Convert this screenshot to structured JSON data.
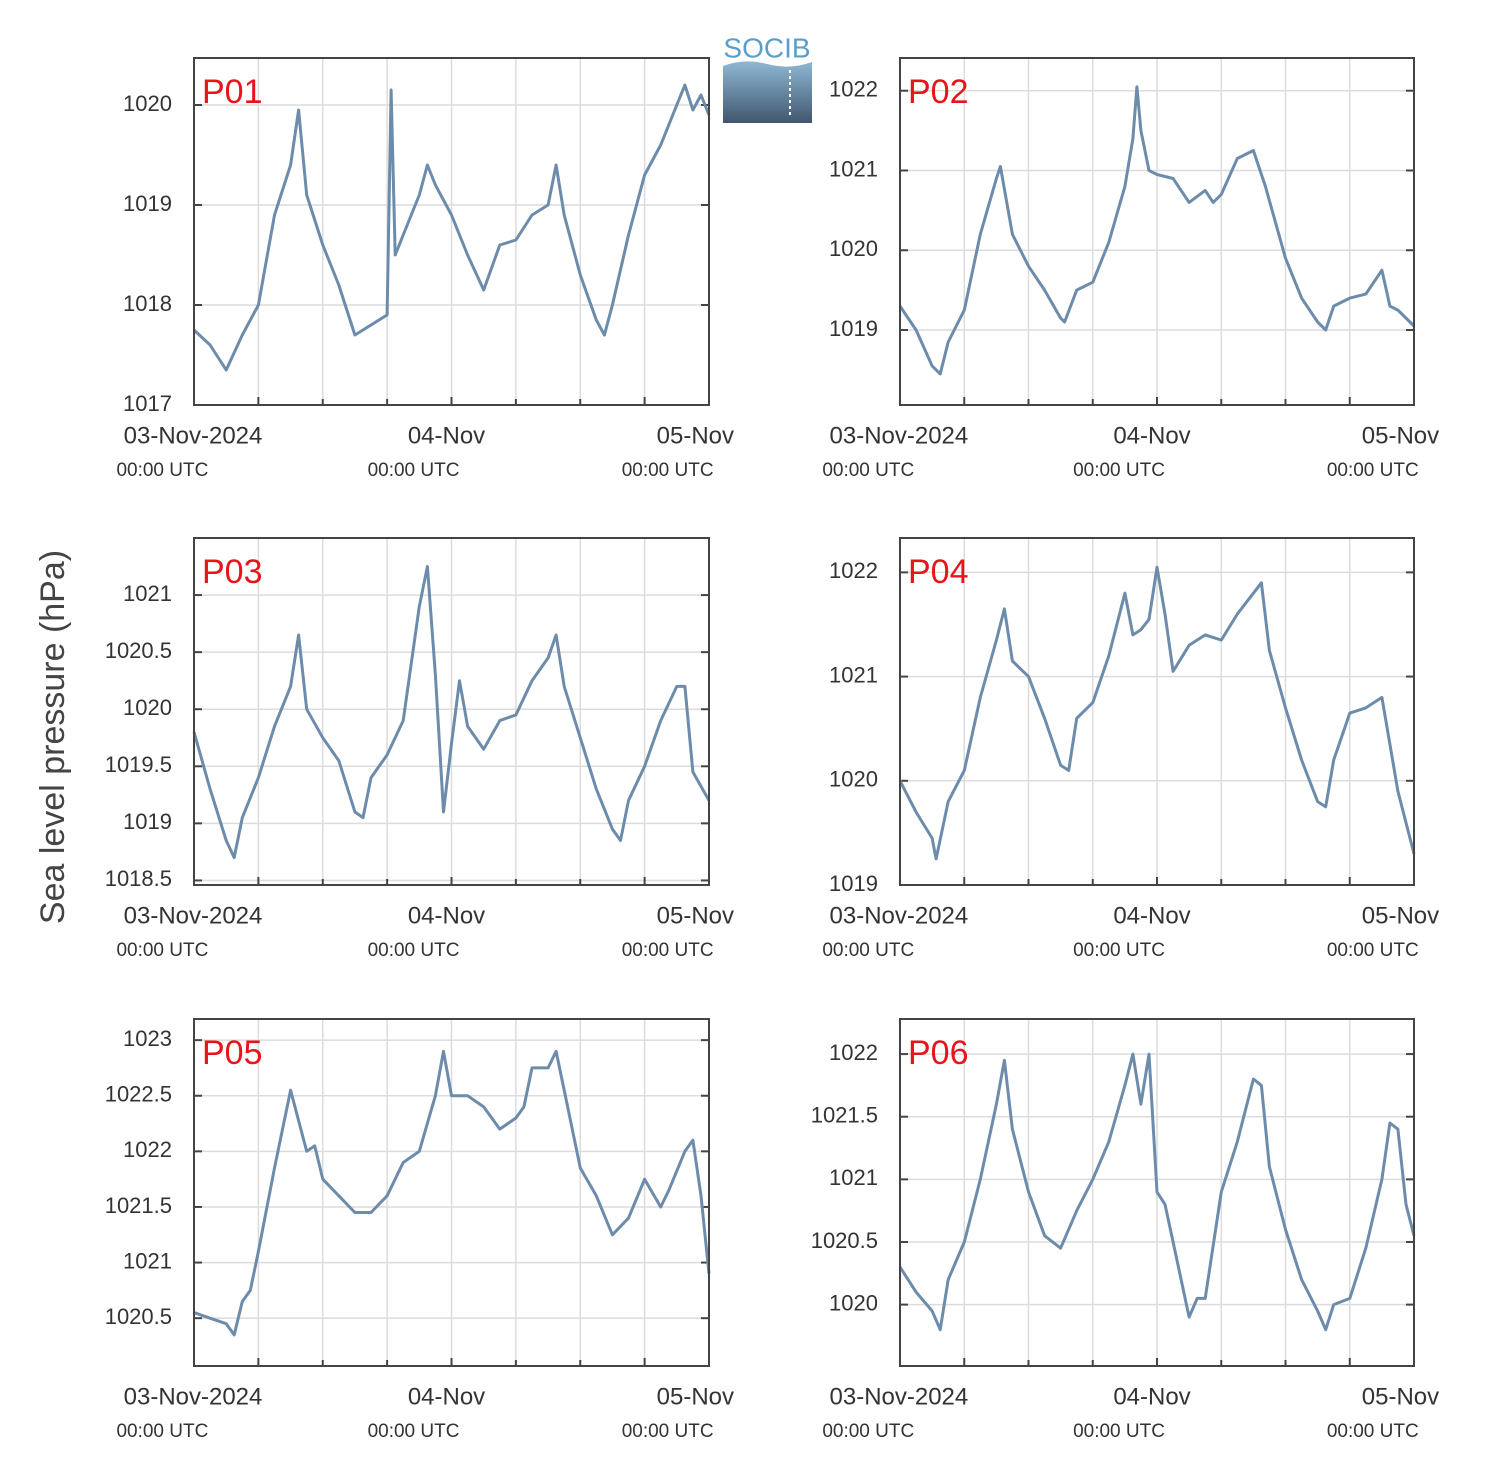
{
  "ylabel": "Sea level pressure (hPa)",
  "logo": "SOCIB",
  "chart_data": [
    {
      "type": "line",
      "title": "P01",
      "color": "#6d8cab",
      "grid": true,
      "x": [
        "2024-11-02 16:00",
        "2024-11-02 18:00",
        "2024-11-02 20:00",
        "2024-11-02 22:00",
        "2024-11-03 00:00",
        "2024-11-03 02:00",
        "2024-11-03 04:00",
        "2024-11-03 05:00",
        "2024-11-03 06:00",
        "2024-11-03 08:00",
        "2024-11-03 10:00",
        "2024-11-03 12:00",
        "2024-11-03 14:00",
        "2024-11-03 16:00",
        "2024-11-03 16:30",
        "2024-11-03 17:00",
        "2024-11-03 18:00",
        "2024-11-03 20:00",
        "2024-11-03 21:00",
        "2024-11-03 22:00",
        "2024-11-04 00:00",
        "2024-11-04 02:00",
        "2024-11-04 04:00",
        "2024-11-04 06:00",
        "2024-11-04 08:00",
        "2024-11-04 10:00",
        "2024-11-04 12:00",
        "2024-11-04 13:00",
        "2024-11-04 14:00",
        "2024-11-04 16:00",
        "2024-11-04 18:00",
        "2024-11-04 19:00",
        "2024-11-04 20:00",
        "2024-11-04 22:00",
        "2024-11-05 00:00",
        "2024-11-05 02:00",
        "2024-11-05 04:00",
        "2024-11-05 05:00",
        "2024-11-05 06:00",
        "2024-11-05 07:00",
        "2024-11-05 08:00"
      ],
      "values": [
        1017.75,
        1017.6,
        1017.35,
        1017.7,
        1018.0,
        1018.9,
        1019.4,
        1019.95,
        1019.1,
        1018.6,
        1018.2,
        1017.7,
        1017.8,
        1017.9,
        1020.15,
        1018.5,
        1018.7,
        1019.1,
        1019.4,
        1019.2,
        1018.9,
        1018.5,
        1018.15,
        1018.6,
        1018.65,
        1018.9,
        1019.0,
        1019.4,
        1018.9,
        1018.3,
        1017.85,
        1017.7,
        1018.0,
        1018.7,
        1019.3,
        1019.6,
        1020.0,
        1020.2,
        1019.95,
        1020.1,
        1019.9
      ],
      "xlim": [
        "2024-11-02 16:00",
        "2024-11-05 08:00"
      ],
      "xticks": [
        {
          "value": "2024-11-03 00:00",
          "label": "03-Nov-2024",
          "sublabel": "00:00 UTC"
        },
        {
          "value": "2024-11-04 00:00",
          "label": "04-Nov",
          "sublabel": "00:00 UTC"
        },
        {
          "value": "2024-11-05 00:00",
          "label": "05-Nov",
          "sublabel": "00:00 UTC"
        }
      ],
      "xgrid": [
        "2024-11-03 08:00",
        "2024-11-03 16:00",
        "2024-11-04 08:00",
        "2024-11-04 16:00"
      ],
      "ylim": [
        1017,
        1020.47
      ],
      "yticks": [
        1017,
        1018,
        1019,
        1020
      ]
    },
    {
      "type": "line",
      "title": "P02",
      "color": "#6d8cab",
      "grid": true,
      "x": [
        "2024-11-02 16:00",
        "2024-11-02 18:00",
        "2024-11-02 20:00",
        "2024-11-02 21:00",
        "2024-11-02 22:00",
        "2024-11-03 00:00",
        "2024-11-03 02:00",
        "2024-11-03 04:00",
        "2024-11-03 04:30",
        "2024-11-03 06:00",
        "2024-11-03 08:00",
        "2024-11-03 10:00",
        "2024-11-03 12:00",
        "2024-11-03 12:30",
        "2024-11-03 14:00",
        "2024-11-03 16:00",
        "2024-11-03 18:00",
        "2024-11-03 20:00",
        "2024-11-03 21:00",
        "2024-11-03 21:30",
        "2024-11-03 22:00",
        "2024-11-03 23:00",
        "2024-11-04 00:00",
        "2024-11-04 02:00",
        "2024-11-04 04:00",
        "2024-11-04 06:00",
        "2024-11-04 07:00",
        "2024-11-04 08:00",
        "2024-11-04 10:00",
        "2024-11-04 12:00",
        "2024-11-04 13:30",
        "2024-11-04 16:00",
        "2024-11-04 18:00",
        "2024-11-04 20:00",
        "2024-11-04 21:00",
        "2024-11-04 22:00",
        "2024-11-05 00:00",
        "2024-11-05 02:00",
        "2024-11-05 04:00",
        "2024-11-05 05:00",
        "2024-11-05 06:00",
        "2024-11-05 08:00"
      ],
      "values": [
        1019.3,
        1019.0,
        1018.55,
        1018.45,
        1018.85,
        1019.25,
        1020.2,
        1020.9,
        1021.05,
        1020.2,
        1019.8,
        1019.5,
        1019.15,
        1019.1,
        1019.5,
        1019.6,
        1020.1,
        1020.8,
        1021.4,
        1022.05,
        1021.5,
        1021.0,
        1020.95,
        1020.9,
        1020.6,
        1020.75,
        1020.6,
        1020.7,
        1021.15,
        1021.25,
        1020.8,
        1019.9,
        1019.4,
        1019.1,
        1019.0,
        1019.3,
        1019.4,
        1019.45,
        1019.75,
        1019.3,
        1019.25,
        1019.05
      ],
      "xlim": [
        "2024-11-02 16:00",
        "2024-11-05 08:00"
      ],
      "xticks": [
        {
          "value": "2024-11-03 00:00",
          "label": "03-Nov-2024",
          "sublabel": "00:00 UTC"
        },
        {
          "value": "2024-11-04 00:00",
          "label": "04-Nov",
          "sublabel": "00:00 UTC"
        },
        {
          "value": "2024-11-05 00:00",
          "label": "05-Nov",
          "sublabel": "00:00 UTC"
        }
      ],
      "xgrid": [
        "2024-11-03 08:00",
        "2024-11-03 16:00",
        "2024-11-04 08:00",
        "2024-11-04 16:00"
      ],
      "ylim": [
        1018.06,
        1022.41
      ],
      "yticks": [
        1019,
        1020,
        1021,
        1022
      ]
    },
    {
      "type": "line",
      "title": "P03",
      "color": "#6d8cab",
      "grid": true,
      "x": [
        "2024-11-02 16:00",
        "2024-11-02 18:00",
        "2024-11-02 20:00",
        "2024-11-02 21:00",
        "2024-11-02 22:00",
        "2024-11-03 00:00",
        "2024-11-03 02:00",
        "2024-11-03 04:00",
        "2024-11-03 05:00",
        "2024-11-03 06:00",
        "2024-11-03 08:00",
        "2024-11-03 10:00",
        "2024-11-03 12:00",
        "2024-11-03 13:00",
        "2024-11-03 14:00",
        "2024-11-03 16:00",
        "2024-11-03 18:00",
        "2024-11-03 20:00",
        "2024-11-03 21:00",
        "2024-11-03 22:00",
        "2024-11-03 23:00",
        "2024-11-04 00:00",
        "2024-11-04 01:00",
        "2024-11-04 02:00",
        "2024-11-04 04:00",
        "2024-11-04 06:00",
        "2024-11-04 08:00",
        "2024-11-04 10:00",
        "2024-11-04 12:00",
        "2024-11-04 13:00",
        "2024-11-04 14:00",
        "2024-11-04 16:00",
        "2024-11-04 18:00",
        "2024-11-04 20:00",
        "2024-11-04 21:00",
        "2024-11-04 22:00",
        "2024-11-05 00:00",
        "2024-11-05 02:00",
        "2024-11-05 04:00",
        "2024-11-05 05:00",
        "2024-11-05 06:00",
        "2024-11-05 08:00"
      ],
      "values": [
        1019.8,
        1019.3,
        1018.85,
        1018.7,
        1019.05,
        1019.4,
        1019.85,
        1020.2,
        1020.65,
        1020.0,
        1019.75,
        1019.55,
        1019.1,
        1019.05,
        1019.4,
        1019.6,
        1019.9,
        1020.9,
        1021.25,
        1020.3,
        1019.1,
        1019.7,
        1020.25,
        1019.85,
        1019.65,
        1019.9,
        1019.95,
        1020.25,
        1020.45,
        1020.65,
        1020.2,
        1019.75,
        1019.3,
        1018.95,
        1018.85,
        1019.2,
        1019.5,
        1019.9,
        1020.2,
        1020.2,
        1019.45,
        1019.2
      ],
      "xlim": [
        "2024-11-02 16:00",
        "2024-11-05 08:00"
      ],
      "xticks": [
        {
          "value": "2024-11-03 00:00",
          "label": "03-Nov-2024",
          "sublabel": "00:00 UTC"
        },
        {
          "value": "2024-11-04 00:00",
          "label": "04-Nov",
          "sublabel": "00:00 UTC"
        },
        {
          "value": "2024-11-05 00:00",
          "label": "05-Nov",
          "sublabel": "00:00 UTC"
        }
      ],
      "xgrid": [
        "2024-11-03 08:00",
        "2024-11-03 16:00",
        "2024-11-04 08:00",
        "2024-11-04 16:00"
      ],
      "ylim": [
        1018.46,
        1021.5
      ],
      "yticks": [
        1018.5,
        1019,
        1019.5,
        1020,
        1020.5,
        1021
      ]
    },
    {
      "type": "line",
      "title": "P04",
      "color": "#6d8cab",
      "grid": true,
      "x": [
        "2024-11-02 16:00",
        "2024-11-02 18:00",
        "2024-11-02 20:00",
        "2024-11-02 20:30",
        "2024-11-02 22:00",
        "2024-11-03 00:00",
        "2024-11-03 02:00",
        "2024-11-03 04:00",
        "2024-11-03 05:00",
        "2024-11-03 06:00",
        "2024-11-03 08:00",
        "2024-11-03 10:00",
        "2024-11-03 12:00",
        "2024-11-03 13:00",
        "2024-11-03 14:00",
        "2024-11-03 16:00",
        "2024-11-03 18:00",
        "2024-11-03 20:00",
        "2024-11-03 21:00",
        "2024-11-03 22:00",
        "2024-11-03 23:00",
        "2024-11-04 00:00",
        "2024-11-04 01:00",
        "2024-11-04 02:00",
        "2024-11-04 04:00",
        "2024-11-04 06:00",
        "2024-11-04 08:00",
        "2024-11-04 10:00",
        "2024-11-04 12:00",
        "2024-11-04 13:00",
        "2024-11-04 14:00",
        "2024-11-04 16:00",
        "2024-11-04 18:00",
        "2024-11-04 20:00",
        "2024-11-04 21:00",
        "2024-11-04 22:00",
        "2024-11-05 00:00",
        "2024-11-05 02:00",
        "2024-11-05 04:00",
        "2024-11-05 05:00",
        "2024-11-05 06:00",
        "2024-11-05 08:00"
      ],
      "values": [
        1020.0,
        1019.7,
        1019.45,
        1019.25,
        1019.8,
        1020.1,
        1020.8,
        1021.35,
        1021.65,
        1021.15,
        1021.0,
        1020.6,
        1020.15,
        1020.1,
        1020.6,
        1020.75,
        1021.2,
        1021.8,
        1021.4,
        1021.45,
        1021.55,
        1022.05,
        1021.6,
        1021.05,
        1021.3,
        1021.4,
        1021.35,
        1021.6,
        1021.8,
        1021.9,
        1021.25,
        1020.7,
        1020.2,
        1019.8,
        1019.75,
        1020.2,
        1020.65,
        1020.7,
        1020.8,
        1020.35,
        1019.9,
        1019.3
      ],
      "xlim": [
        "2024-11-02 16:00",
        "2024-11-05 08:00"
      ],
      "xticks": [
        {
          "value": "2024-11-03 00:00",
          "label": "03-Nov-2024",
          "sublabel": "00:00 UTC"
        },
        {
          "value": "2024-11-04 00:00",
          "label": "04-Nov",
          "sublabel": "00:00 UTC"
        },
        {
          "value": "2024-11-05 00:00",
          "label": "05-Nov",
          "sublabel": "00:00 UTC"
        }
      ],
      "xgrid": [
        "2024-11-03 08:00",
        "2024-11-03 16:00",
        "2024-11-04 08:00",
        "2024-11-04 16:00"
      ],
      "ylim": [
        1019,
        1022.33
      ],
      "yticks": [
        1019,
        1020,
        1021,
        1022
      ]
    },
    {
      "type": "line",
      "title": "P05",
      "color": "#6d8cab",
      "grid": true,
      "x": [
        "2024-11-02 16:00",
        "2024-11-02 18:00",
        "2024-11-02 20:00",
        "2024-11-02 21:00",
        "2024-11-02 22:00",
        "2024-11-02 23:00",
        "2024-11-03 00:00",
        "2024-11-03 02:00",
        "2024-11-03 04:00",
        "2024-11-03 06:00",
        "2024-11-03 07:00",
        "2024-11-03 08:00",
        "2024-11-03 10:00",
        "2024-11-03 12:00",
        "2024-11-03 14:00",
        "2024-11-03 16:00",
        "2024-11-03 18:00",
        "2024-11-03 20:00",
        "2024-11-03 22:00",
        "2024-11-03 23:00",
        "2024-11-04 00:00",
        "2024-11-04 02:00",
        "2024-11-04 04:00",
        "2024-11-04 06:00",
        "2024-11-04 08:00",
        "2024-11-04 09:00",
        "2024-11-04 10:00",
        "2024-11-04 12:00",
        "2024-11-04 13:00",
        "2024-11-04 14:00",
        "2024-11-04 16:00",
        "2024-11-04 18:00",
        "2024-11-04 20:00",
        "2024-11-04 22:00",
        "2024-11-05 00:00",
        "2024-11-05 02:00",
        "2024-11-05 03:00",
        "2024-11-05 05:00",
        "2024-11-05 06:00",
        "2024-11-05 07:00",
        "2024-11-05 08:00"
      ],
      "values": [
        1020.55,
        1020.5,
        1020.45,
        1020.35,
        1020.65,
        1020.75,
        1021.1,
        1021.85,
        1022.55,
        1022.0,
        1022.05,
        1021.75,
        1021.6,
        1021.45,
        1021.45,
        1021.6,
        1021.9,
        1022.0,
        1022.5,
        1022.9,
        1022.5,
        1022.5,
        1022.4,
        1022.2,
        1022.3,
        1022.4,
        1022.75,
        1022.75,
        1022.9,
        1022.55,
        1021.85,
        1021.6,
        1021.25,
        1021.4,
        1021.75,
        1021.5,
        1021.65,
        1022.0,
        1022.1,
        1021.6,
        1020.9
      ],
      "xlim": [
        "2024-11-02 16:00",
        "2024-11-05 08:00"
      ],
      "xticks": [
        {
          "value": "2024-11-03 00:00",
          "label": "03-Nov-2024",
          "sublabel": "00:00 UTC"
        },
        {
          "value": "2024-11-04 00:00",
          "label": "04-Nov",
          "sublabel": "00:00 UTC"
        },
        {
          "value": "2024-11-05 00:00",
          "label": "05-Nov",
          "sublabel": "00:00 UTC"
        }
      ],
      "xgrid": [
        "2024-11-03 08:00",
        "2024-11-03 16:00",
        "2024-11-04 08:00",
        "2024-11-04 16:00"
      ],
      "ylim": [
        1020.07,
        1023.19
      ],
      "yticks": [
        1020.5,
        1021,
        1021.5,
        1022,
        1022.5,
        1023
      ]
    },
    {
      "type": "line",
      "title": "P06",
      "color": "#6d8cab",
      "grid": true,
      "x": [
        "2024-11-02 16:00",
        "2024-11-02 18:00",
        "2024-11-02 20:00",
        "2024-11-02 21:00",
        "2024-11-02 22:00",
        "2024-11-03 00:00",
        "2024-11-03 02:00",
        "2024-11-03 04:00",
        "2024-11-03 05:00",
        "2024-11-03 06:00",
        "2024-11-03 08:00",
        "2024-11-03 10:00",
        "2024-11-03 12:00",
        "2024-11-03 14:00",
        "2024-11-03 16:00",
        "2024-11-03 18:00",
        "2024-11-03 20:00",
        "2024-11-03 21:00",
        "2024-11-03 22:00",
        "2024-11-03 23:00",
        "2024-11-04 00:00",
        "2024-11-04 01:00",
        "2024-11-04 02:00",
        "2024-11-04 04:00",
        "2024-11-04 05:00",
        "2024-11-04 06:00",
        "2024-11-04 08:00",
        "2024-11-04 10:00",
        "2024-11-04 12:00",
        "2024-11-04 13:00",
        "2024-11-04 14:00",
        "2024-11-04 16:00",
        "2024-11-04 18:00",
        "2024-11-04 20:00",
        "2024-11-04 21:00",
        "2024-11-04 22:00",
        "2024-11-05 00:00",
        "2024-11-05 02:00",
        "2024-11-05 04:00",
        "2024-11-05 05:00",
        "2024-11-05 06:00",
        "2024-11-05 07:00",
        "2024-11-05 08:00"
      ],
      "values": [
        1020.3,
        1020.1,
        1019.95,
        1019.8,
        1020.2,
        1020.5,
        1021.0,
        1021.6,
        1021.95,
        1021.4,
        1020.9,
        1020.55,
        1020.45,
        1020.75,
        1021.0,
        1021.3,
        1021.75,
        1022.0,
        1021.6,
        1022.0,
        1020.9,
        1020.8,
        1020.5,
        1019.9,
        1020.05,
        1020.05,
        1020.9,
        1021.3,
        1021.8,
        1021.75,
        1021.1,
        1020.6,
        1020.2,
        1019.95,
        1019.8,
        1020.0,
        1020.05,
        1020.45,
        1021.0,
        1021.45,
        1021.4,
        1020.8,
        1020.55
      ],
      "xlim": [
        "2024-11-02 16:00",
        "2024-11-05 08:00"
      ],
      "xticks": [
        {
          "value": "2024-11-03 00:00",
          "label": "03-Nov-2024",
          "sublabel": "00:00 UTC"
        },
        {
          "value": "2024-11-04 00:00",
          "label": "04-Nov",
          "sublabel": "00:00 UTC"
        },
        {
          "value": "2024-11-05 00:00",
          "label": "05-Nov",
          "sublabel": "00:00 UTC"
        }
      ],
      "xgrid": [
        "2024-11-03 08:00",
        "2024-11-03 16:00",
        "2024-11-04 08:00",
        "2024-11-04 16:00"
      ],
      "ylim": [
        1019.51,
        1022.28
      ],
      "yticks": [
        1020,
        1020.5,
        1021,
        1021.5,
        1022
      ]
    }
  ]
}
